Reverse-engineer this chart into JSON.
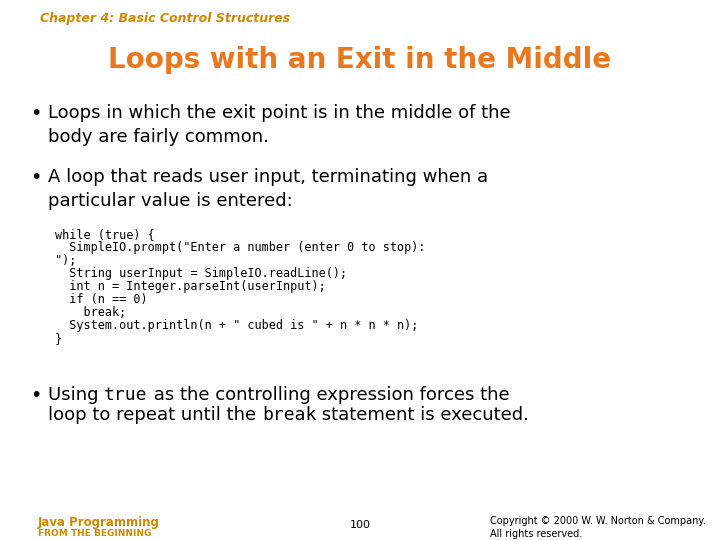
{
  "bg_color": "#ffffff",
  "chapter_text": "Chapter 4: Basic Control Structures",
  "chapter_color": "#cc8800",
  "chapter_fontsize": 9,
  "title_text": "Loops with an Exit in the Middle",
  "title_color": "#e87820",
  "title_fontsize": 20,
  "bullet_color": "#000000",
  "bullet_fontsize": 13,
  "bullets": [
    "Loops in which the exit point is in the middle of the\nbody are fairly common.",
    "A loop that reads user input, terminating when a\nparticular value is entered:"
  ],
  "code_lines": [
    "while (true) {",
    "  SimpleIO.prompt(\"Enter a number (enter 0 to stop):",
    "\");",
    "  String userInput = SimpleIO.readLine();",
    "  int n = Integer.parseInt(userInput);",
    "  if (n == 0)",
    "    break;",
    "  System.out.println(n + \" cubed is \" + n * n * n);",
    "}"
  ],
  "code_fontsize": 8.5,
  "code_color": "#000000",
  "footer_left1": "Java Programming",
  "footer_left1_color": "#cc8800",
  "footer_left2": "FROM THE BEGINNING",
  "footer_left2_color": "#cc8800",
  "footer_center": "100",
  "footer_right": "Copyright © 2000 W. W. Norton & Company.\nAll rights reserved.",
  "footer_fontsize": 7
}
